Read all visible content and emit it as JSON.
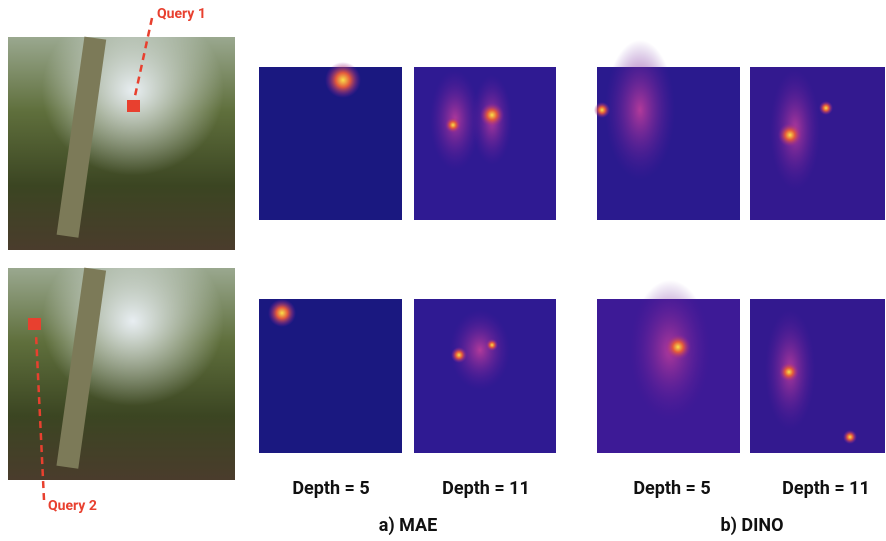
{
  "queries": [
    "Query 1",
    "Query 2"
  ],
  "columns": [
    "Depth = 5",
    "Depth = 11",
    "Depth = 5",
    "Depth = 11"
  ],
  "groups": [
    "a) MAE",
    "b) DINO"
  ]
}
